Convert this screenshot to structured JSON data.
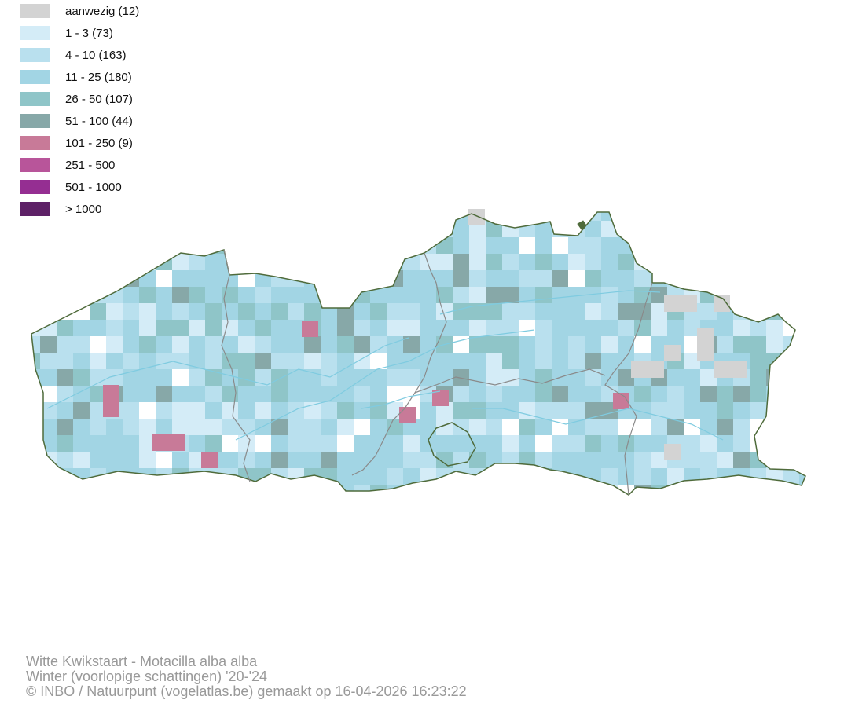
{
  "legend": {
    "items": [
      {
        "label": "aanwezig (12)",
        "color": "#d3d3d3"
      },
      {
        "label": "1 - 3 (73)",
        "color": "#d4ecf7"
      },
      {
        "label": "4 - 10 (163)",
        "color": "#b9e0ee"
      },
      {
        "label": "11 - 25 (180)",
        "color": "#a2d5e4"
      },
      {
        "label": "26 - 50 (107)",
        "color": "#8fc5c8"
      },
      {
        "label": "51 - 100 (44)",
        "color": "#87a8a8"
      },
      {
        "label": "101 - 250 (9)",
        "color": "#c87a98"
      },
      {
        "label": "251 - 500",
        "color": "#b8559a"
      },
      {
        "label": "501 - 1000",
        "color": "#952e92"
      },
      {
        "label": "> 1000",
        "color": "#5e2167"
      }
    ]
  },
  "map": {
    "border_color": "#4f6b3b",
    "province_border_color": "#8a8a8a",
    "river_color": "#7fcbe0"
  },
  "credits": {
    "line1": "Witte Kwikstaart - Motacilla alba alba",
    "line2": "Winter (voorlopige schattingen) '20-'24",
    "line3": "© INBO / Natuurpunt (vogelatlas.be) gemaakt op 16-04-2026 16:23:22"
  }
}
